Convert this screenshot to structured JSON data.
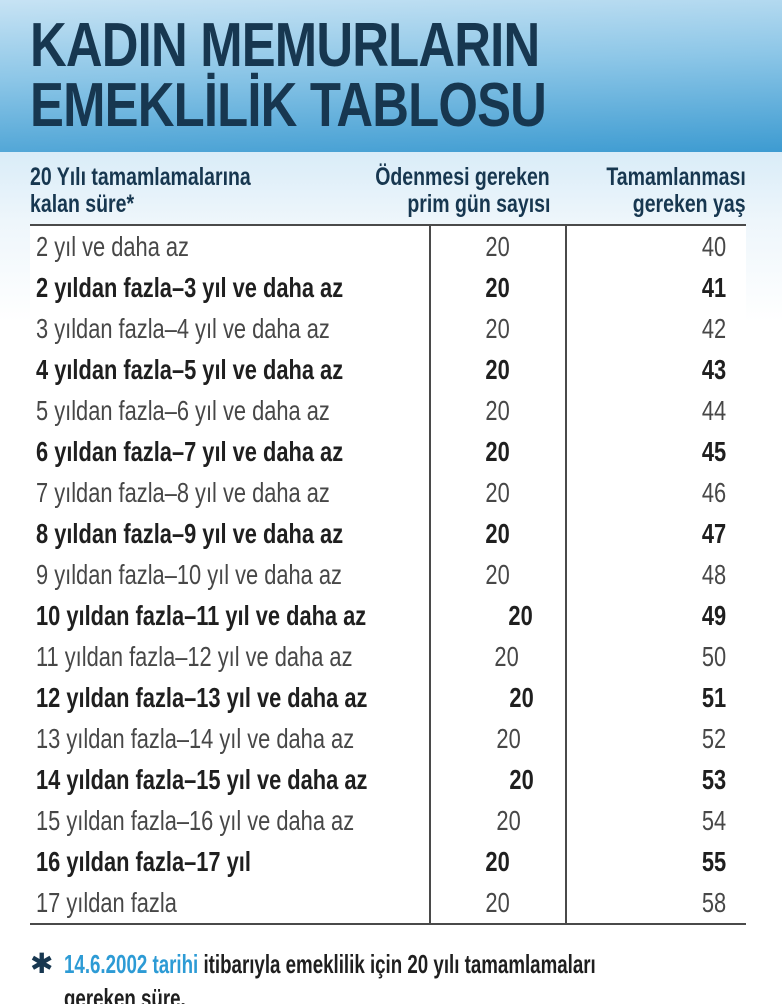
{
  "header": {
    "title_line1": "KADIN MEMURLARIN",
    "title_line2": "EMEKLİLİK TABLOSU"
  },
  "table": {
    "col_headers": [
      {
        "line1": "20 Yılı tamamlamalarına",
        "line2": "kalan süre*"
      },
      {
        "line1": "Ödenmesi gereken",
        "line2": "prim gün sayısı"
      },
      {
        "line1": "Tamamlanması",
        "line2": "gereken yaş"
      }
    ],
    "bold_row_indices": [
      1,
      3,
      5,
      7,
      9,
      11,
      13,
      15
    ]
  },
  "footnote": {
    "star": "✱",
    "date_highlight": "14.6.2002 tarihi",
    "line1_rest": " itibarıyla emeklilik için 20 yılı tamamlamaları",
    "line2": "gereken süre."
  },
  "colors": {
    "header_grad_top": "#c7e3f4",
    "header_grad_mid": "#8cc6e7",
    "header_grad_bottom": "#3d9bd1",
    "title_navy": "#173750",
    "accent_blue": "#2d9bd5",
    "rule_gray": "#4a4a4a",
    "text_dark": "#1f1f1f",
    "text_regular": "#474747"
  },
  "chart_data": {
    "type": "table",
    "title": "KADIN MEMURLARIN EMEKLİLİK TABLOSU",
    "columns": [
      "20 Yılı tamamlamalarına kalan süre*",
      "Ödenmesi gereken prim gün sayısı",
      "Tamamlanması gereken yaş"
    ],
    "rows": [
      [
        "2 yıl ve daha az",
        20,
        40
      ],
      [
        "2 yıldan fazla–3 yıl ve daha az",
        20,
        41
      ],
      [
        "3 yıldan fazla–4 yıl ve daha az",
        20,
        42
      ],
      [
        "4 yıldan fazla–5 yıl ve daha az",
        20,
        43
      ],
      [
        "5 yıldan fazla–6 yıl ve daha az",
        20,
        44
      ],
      [
        "6 yıldan fazla–7 yıl ve daha az",
        20,
        45
      ],
      [
        "7 yıldan fazla–8 yıl ve daha az",
        20,
        46
      ],
      [
        "8 yıldan fazla–9 yıl ve daha az",
        20,
        47
      ],
      [
        "9 yıldan fazla–10 yıl ve daha az",
        20,
        48
      ],
      [
        "10 yıldan fazla–11 yıl ve daha az",
        20,
        49
      ],
      [
        "11 yıldan fazla–12 yıl ve daha az",
        20,
        50
      ],
      [
        "12 yıldan fazla–13 yıl ve daha az",
        20,
        51
      ],
      [
        "13 yıldan fazla–14 yıl ve daha az",
        20,
        52
      ],
      [
        "14 yıldan fazla–15 yıl ve daha az",
        20,
        53
      ],
      [
        "15 yıldan fazla–16 yıl ve daha az",
        20,
        54
      ],
      [
        "16 yıldan fazla–17 yıl",
        20,
        55
      ],
      [
        "17 yıldan fazla",
        20,
        58
      ]
    ],
    "footnote": "✱ 14.6.2002 tarihi itibarıyla emeklilik için 20 yılı tamamlamaları gereken süre."
  }
}
